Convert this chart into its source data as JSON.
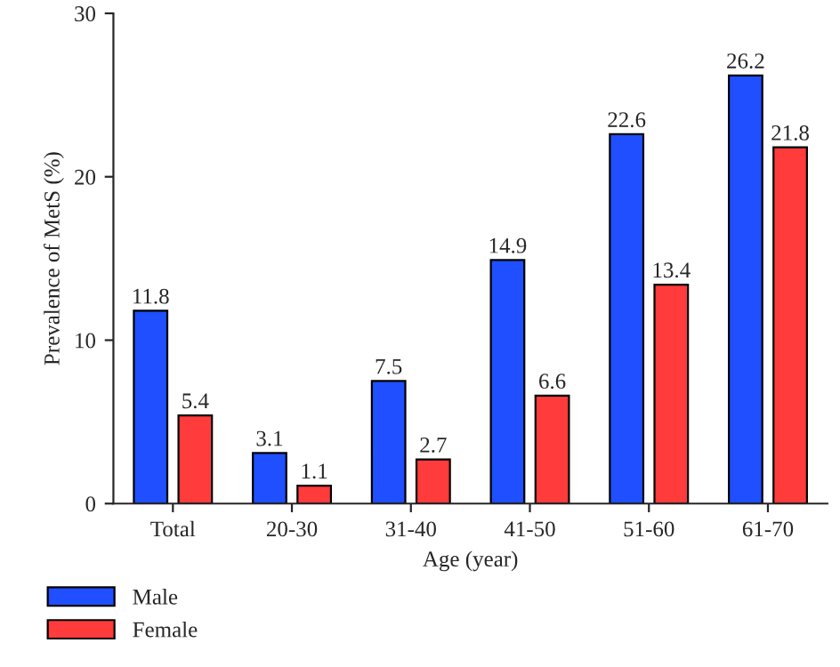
{
  "chart_data": {
    "type": "bar",
    "xlabel": "Age (year)",
    "ylabel": "Prevalence of MetS (%)",
    "categories": [
      "Total",
      "20-30",
      "31-40",
      "41-50",
      "51-60",
      "61-70"
    ],
    "series": [
      {
        "name": "Male",
        "color": "#1f4fff",
        "values": [
          11.8,
          3.1,
          7.5,
          14.9,
          22.6,
          26.2
        ]
      },
      {
        "name": "Female",
        "color": "#ff3b3b",
        "values": [
          5.4,
          1.1,
          2.7,
          6.6,
          13.4,
          21.8
        ]
      }
    ],
    "ylim": [
      0,
      30
    ],
    "yticks": [
      0,
      10,
      20,
      30
    ],
    "data_labels": true,
    "grid": false,
    "legend": "bottom left"
  }
}
